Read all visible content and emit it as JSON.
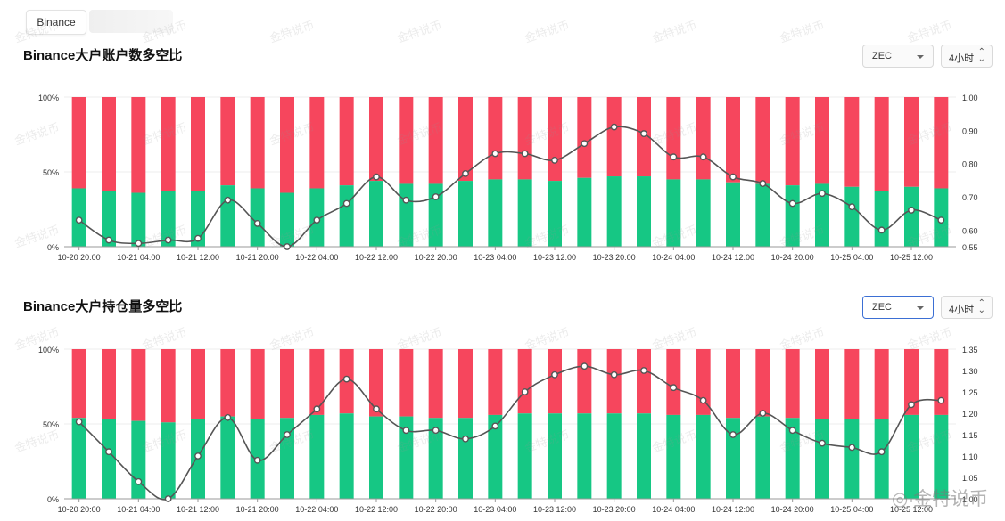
{
  "exchange_tab": "Binance",
  "panels": [
    {
      "title": "Binance大户账户数多空比",
      "coin": "ZEC",
      "interval": "4小时"
    },
    {
      "title": "Binance大户持仓量多空比",
      "coin": "ZEC",
      "interval": "4小时"
    }
  ],
  "watermark": "金特说币",
  "colors": {
    "long": "#16c784",
    "short": "#f6465d",
    "line": "#555555",
    "grid": "#eeeeee"
  },
  "chart_data": [
    {
      "type": "bar",
      "stacked": true,
      "title": "Binance大户账户数多空比",
      "x_tick_labels": [
        "10-20 20:00",
        "10-21 04:00",
        "10-21 12:00",
        "10-21 20:00",
        "10-22 04:00",
        "10-22 12:00",
        "10-22 20:00",
        "10-23 04:00",
        "10-23 12:00",
        "10-23 20:00",
        "10-24 04:00",
        "10-24 12:00",
        "10-24 20:00",
        "10-25 04:00",
        "10-25 12:00"
      ],
      "y_left_ticks": [
        "100%",
        "50%",
        "0%"
      ],
      "y_right_ticks": [
        "1.00",
        "0.90",
        "0.80",
        "0.70",
        "0.60",
        "0.55"
      ],
      "y_right_range": [
        0.55,
        1.0
      ],
      "long_pct": [
        39,
        37,
        36,
        37,
        37,
        41,
        39,
        36,
        39,
        41,
        44,
        42,
        42,
        44,
        45,
        45,
        44,
        46,
        47,
        47,
        45,
        45,
        43,
        42,
        41,
        42,
        40,
        37,
        40,
        39
      ],
      "ratio": [
        0.63,
        0.57,
        0.56,
        0.57,
        0.575,
        0.69,
        0.62,
        0.55,
        0.63,
        0.68,
        0.76,
        0.69,
        0.7,
        0.77,
        0.83,
        0.83,
        0.81,
        0.86,
        0.91,
        0.89,
        0.82,
        0.82,
        0.76,
        0.74,
        0.68,
        0.71,
        0.67,
        0.6,
        0.66,
        0.63
      ]
    },
    {
      "type": "bar",
      "stacked": true,
      "title": "Binance大户持仓量多空比",
      "x_tick_labels": [
        "10-20 20:00",
        "10-21 04:00",
        "10-21 12:00",
        "10-21 20:00",
        "10-22 04:00",
        "10-22 12:00",
        "10-22 20:00",
        "10-23 04:00",
        "10-23 12:00",
        "10-23 20:00",
        "10-24 04:00",
        "10-24 12:00",
        "10-24 20:00",
        "10-25 04:00",
        "10-25 12:00"
      ],
      "y_left_ticks": [
        "100%",
        "50%",
        "0%"
      ],
      "y_right_ticks": [
        "1.35",
        "1.30",
        "1.25",
        "1.20",
        "1.15",
        "1.10",
        "1.05",
        "1.00"
      ],
      "y_right_range": [
        1.0,
        1.35
      ],
      "long_pct": [
        54,
        53,
        52,
        51,
        53,
        55,
        53,
        54,
        56,
        57,
        55,
        55,
        54,
        54,
        56,
        57,
        57,
        57,
        57,
        57,
        56,
        56,
        54,
        55,
        54,
        53,
        53,
        53,
        56,
        56
      ],
      "ratio": [
        1.18,
        1.11,
        1.04,
        1.0,
        1.1,
        1.19,
        1.09,
        1.15,
        1.21,
        1.28,
        1.21,
        1.16,
        1.16,
        1.14,
        1.17,
        1.25,
        1.29,
        1.31,
        1.29,
        1.3,
        1.26,
        1.23,
        1.15,
        1.2,
        1.16,
        1.13,
        1.12,
        1.11,
        1.22,
        1.23
      ]
    }
  ]
}
